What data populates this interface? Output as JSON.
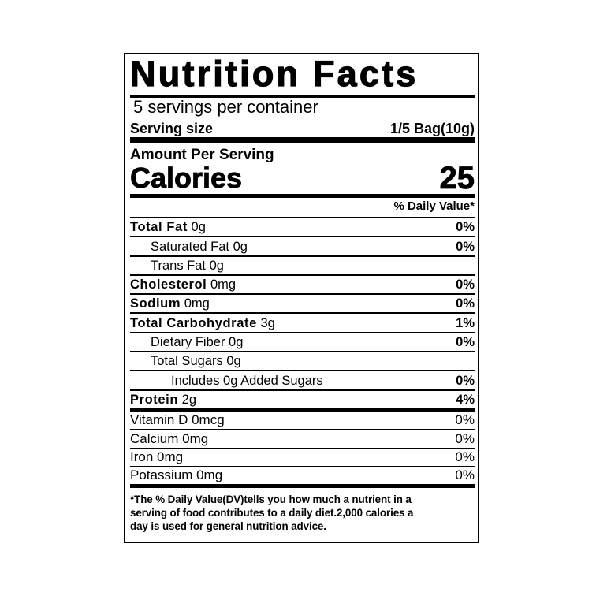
{
  "title": "Nutrition Facts",
  "servings_per_container": "5 servings per container",
  "serving_size": {
    "label": "Serving size",
    "value": "1/5 Bag(10g)"
  },
  "amount_per_serving": "Amount Per Serving",
  "calories": {
    "label": "Calories",
    "value": "25"
  },
  "daily_value_header": "% Daily Value*",
  "nutrients": [
    {
      "name": "Total  Fat",
      "amount": "0g",
      "dv": "0%"
    },
    {
      "name": "Saturated Fat",
      "amount": "0g",
      "dv": "0%"
    },
    {
      "name": "Trans Fat",
      "amount": "0g",
      "dv": ""
    },
    {
      "name": "Cholesterol",
      "amount": "0mg",
      "dv": "0%"
    },
    {
      "name": "Sodium",
      "amount": "0mg",
      "dv": "0%"
    },
    {
      "name": "Total  Carbohydrate",
      "amount": "3g",
      "dv": "1%"
    },
    {
      "name": "Dietary Fiber",
      "amount": "0g",
      "dv": "0%"
    },
    {
      "name": "Total Sugars",
      "amount": "0g",
      "dv": ""
    },
    {
      "name": "Includes 0g  Added Sugars",
      "amount": "",
      "dv": "0%"
    },
    {
      "name": "Protein",
      "amount": "2g",
      "dv": "4%"
    }
  ],
  "vitamins": [
    {
      "label": "Vitamin D  0mcg",
      "dv": "0%"
    },
    {
      "label": "Calcium 0mg",
      "dv": "0%"
    },
    {
      "label": "Iron 0mg",
      "dv": "0%"
    },
    {
      "label": "Potassium 0mg",
      "dv": "0%"
    }
  ],
  "footnote": [
    "*The % Daily Value(DV)tells you how much a nutrient in a",
    "serving of food contributes to a daily diet.2,000 calories a",
    "day is used for general nutrition advice."
  ]
}
